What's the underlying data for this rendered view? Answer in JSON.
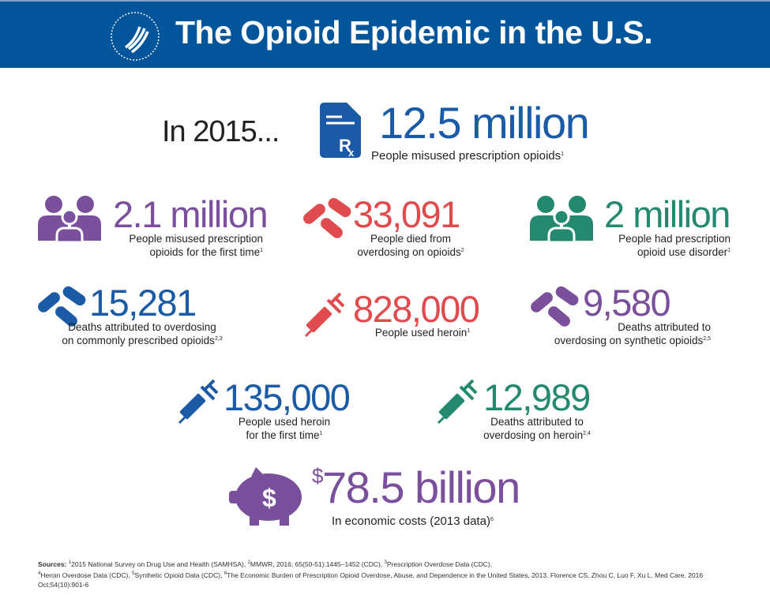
{
  "header": {
    "title": "The Opioid Epidemic in the U.S."
  },
  "intro": "In 2015...",
  "colors": {
    "header": "#02549b",
    "blue": "#1a5aa6",
    "purple": "#7a4f9c",
    "red": "#e04b4e",
    "green": "#23896f"
  },
  "headline": {
    "value": "12.5 million",
    "label": "People misused prescription opioids",
    "ref": "1",
    "icon": "rx-document-icon"
  },
  "stats": [
    {
      "value": "2.1 million",
      "label1": "People misused prescription",
      "label2": "opioids for the first time",
      "ref": "1",
      "icon": "people-icon"
    },
    {
      "value": "33,091",
      "label1": "People died from",
      "label2": "overdosing on opioids",
      "ref": "2",
      "icon": "pills-icon"
    },
    {
      "value": "2 million",
      "label1": "People had prescription",
      "label2": "opioid use disorder",
      "ref": "1",
      "icon": "people-icon"
    },
    {
      "value": "15,281",
      "label1": "Deaths attributed to overdosing",
      "label2": "on commonly prescribed opioids",
      "ref": "2,3",
      "icon": "pills-icon"
    },
    {
      "value": "828,000",
      "label1": "People used heroin",
      "label2": "",
      "ref": "1",
      "icon": "syringe-icon"
    },
    {
      "value": "9,580",
      "label1": "Deaths attributed to",
      "label2": "overdosing on synthetic opioids",
      "ref": "2,5",
      "icon": "pills-icon"
    },
    {
      "value": "135,000",
      "label1": "People used heroin",
      "label2": "for the first time",
      "ref": "1",
      "icon": "syringe-icon"
    },
    {
      "value": "12,989",
      "label1": "Deaths attributed to",
      "label2": "overdosing on heroin",
      "ref": "2,4",
      "icon": "syringe-icon"
    }
  ],
  "cost": {
    "currency": "$",
    "value": "78.5 billion",
    "label": "In economic costs (2013 data)",
    "ref": "6",
    "icon": "piggy-bank-icon"
  },
  "sources": {
    "heading": "Sources:",
    "s1": "2015 National Survey on Drug Use and Health (SAMHSA),",
    "s2": "MMWR, 2016; 65(50-51):1445–1452 (CDC),",
    "s3": "Prescription Overdose Data (CDC),",
    "s4": "Heroin Overdose Data (CDC),",
    "s5": "Synthetic Opioid Data (CDC),",
    "s6": "The Economic Burden of Prescription Opioid Overdose, Abuse, and Dependence in the United States, 2013. Florence CS, Zhou C, Luo F, Xu L. Med Care. 2016 Oct;54(10):901-6",
    "n1": "1",
    "n2": "2",
    "n3": "3",
    "n4": "4",
    "n5": "5",
    "n6": "6"
  }
}
